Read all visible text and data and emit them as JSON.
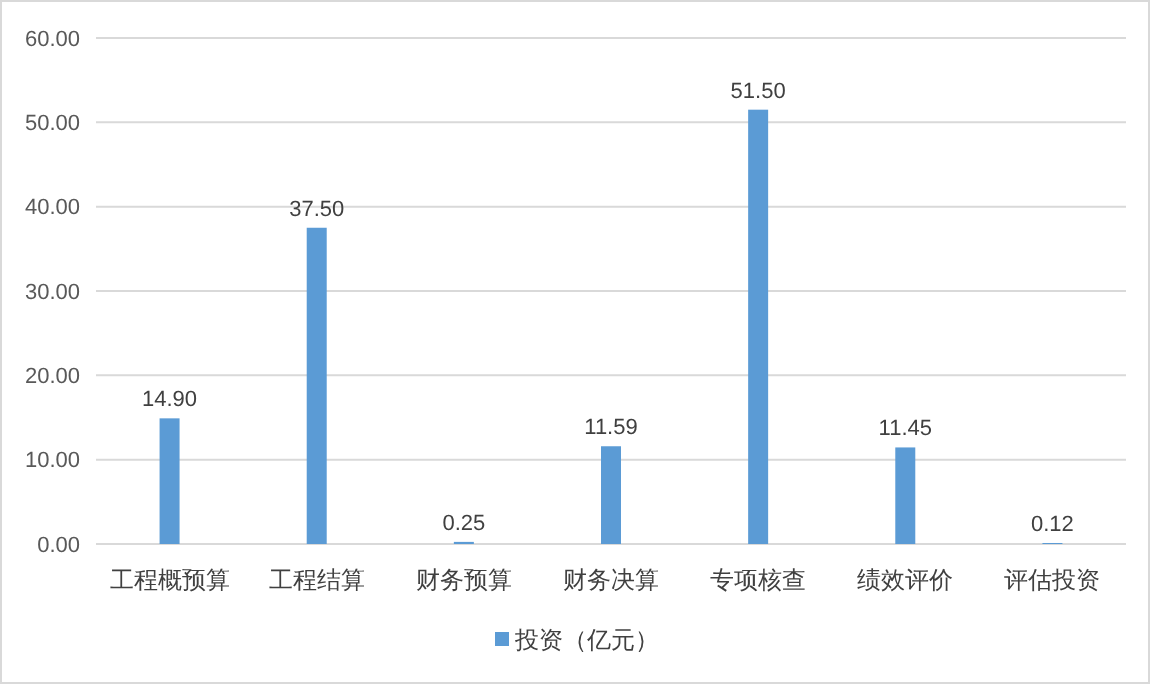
{
  "chart_data": {
    "type": "bar",
    "categories": [
      "工程概预算",
      "工程结算",
      "财务预算",
      "财务决算",
      "专项核查",
      "绩效评价",
      "评估投资"
    ],
    "series": [
      {
        "name": "投资（亿元）",
        "color": "#5b9bd5",
        "values": [
          14.9,
          37.5,
          0.25,
          11.59,
          51.5,
          11.45,
          0.12
        ],
        "value_labels": [
          "14.90",
          "37.50",
          "0.25",
          "11.59",
          "51.50",
          "11.45",
          "0.12"
        ]
      }
    ],
    "ylim": [
      0,
      60
    ],
    "yticks": [
      {
        "value": 0,
        "label": "0.00"
      },
      {
        "value": 10,
        "label": "10.00"
      },
      {
        "value": 20,
        "label": "20.00"
      },
      {
        "value": 30,
        "label": "30.00"
      },
      {
        "value": 40,
        "label": "40.00"
      },
      {
        "value": 50,
        "label": "50.00"
      },
      {
        "value": 60,
        "label": "60.00"
      }
    ],
    "grid": "y",
    "legend": "bottom"
  }
}
